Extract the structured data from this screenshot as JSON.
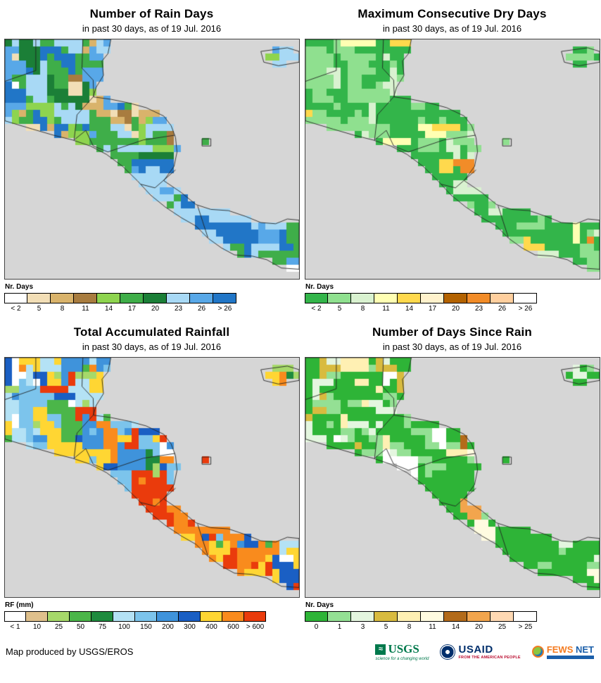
{
  "page": {
    "background": "#ffffff",
    "sea_color": "#d6d6d6"
  },
  "footer": {
    "credit": "Map produced by USGS/EROS",
    "logos": [
      {
        "name": "usgs",
        "text": "USGS",
        "tagline": "science for a changing world"
      },
      {
        "name": "usaid",
        "text": "USAID",
        "tagline": "FROM THE AMERICAN PEOPLE"
      },
      {
        "name": "fews-net",
        "text_primary": "FEWS",
        "text_secondary": " NET"
      }
    ]
  },
  "chart_data": [
    {
      "id": "rain-days",
      "type": "heatmap",
      "title": "Number of Rain Days",
      "subtitle": "in past 30 days, as of 19 Jul. 2016",
      "legend_title": "Nr. Days",
      "classes": [
        {
          "label": "< 2",
          "color": "#ffffff"
        },
        {
          "label": "5",
          "color": "#f2deb6"
        },
        {
          "label": "8",
          "color": "#d9b36b"
        },
        {
          "label": "11",
          "color": "#a87c3f"
        },
        {
          "label": "14",
          "color": "#8ed44f"
        },
        {
          "label": "17",
          "color": "#3fae49"
        },
        {
          "label": "20",
          "color": "#1b7f37"
        },
        {
          "label": "23",
          "color": "#a8d9f5"
        },
        {
          "label": "26",
          "color": "#58a8e8"
        },
        {
          "label": "> 26",
          "color": "#2176c7"
        }
      ],
      "seed": 11,
      "default_weights": [
        3,
        4,
        5,
        3,
        7,
        20,
        6,
        16,
        24,
        12
      ],
      "regions": [
        {
          "x0": 0.2,
          "y0": 0.16,
          "x1": 0.56,
          "y1": 0.42,
          "weights": [
            4,
            10,
            13,
            9,
            7,
            18,
            4,
            10,
            18,
            7
          ]
        },
        {
          "x0": 0.4,
          "y0": 0.5,
          "x1": 1.0,
          "y1": 1.0,
          "weights": [
            1,
            1,
            2,
            1,
            4,
            12,
            4,
            22,
            32,
            21
          ]
        },
        {
          "x0": 0.0,
          "y0": 0.0,
          "x1": 0.4,
          "y1": 0.5,
          "weights": [
            4,
            5,
            6,
            4,
            8,
            22,
            6,
            16,
            20,
            9
          ]
        }
      ]
    },
    {
      "id": "max-consecutive-dry-days",
      "type": "heatmap",
      "title": "Maximum Consecutive Dry Days",
      "subtitle": "in past 30 days, as of 19 Jul. 2016",
      "legend_title": "Nr. Days",
      "classes": [
        {
          "label": "< 2",
          "color": "#33b54a"
        },
        {
          "label": "5",
          "color": "#8fe08f"
        },
        {
          "label": "8",
          "color": "#d9f2d0"
        },
        {
          "label": "11",
          "color": "#ffffb3"
        },
        {
          "label": "14",
          "color": "#ffd94d"
        },
        {
          "label": "17",
          "color": "#fff2cc"
        },
        {
          "label": "20",
          "color": "#b36200"
        },
        {
          "label": "23",
          "color": "#f28c28"
        },
        {
          "label": "26",
          "color": "#ffcf9e"
        },
        {
          "label": "> 26",
          "color": "#ffffff"
        }
      ],
      "seed": 22,
      "default_weights": [
        56,
        26,
        9,
        4,
        2,
        1,
        0.5,
        0.5,
        0.5,
        0.5
      ],
      "regions": [
        {
          "x0": 0.0,
          "y0": 0.0,
          "x1": 0.5,
          "y1": 0.16,
          "weights": [
            26,
            20,
            14,
            16,
            14,
            4,
            2,
            2,
            1,
            1
          ]
        }
      ]
    },
    {
      "id": "total-accumulated-rainfall",
      "type": "heatmap",
      "title": "Total Accumulated Rainfall",
      "subtitle": "in past 30 days, as of 19 Jul. 2016",
      "legend_title": "RF (mm)",
      "classes": [
        {
          "label": "< 1",
          "color": "#ffffff"
        },
        {
          "label": "10",
          "color": "#dfc08c"
        },
        {
          "label": "25",
          "color": "#a6d96a"
        },
        {
          "label": "50",
          "color": "#4bb649"
        },
        {
          "label": "75",
          "color": "#1e8b3e"
        },
        {
          "label": "100",
          "color": "#b4e2f5"
        },
        {
          "label": "150",
          "color": "#7cc4ec"
        },
        {
          "label": "200",
          "color": "#3f93db"
        },
        {
          "label": "300",
          "color": "#1a5fc4"
        },
        {
          "label": "400",
          "color": "#ffd633"
        },
        {
          "label": "600",
          "color": "#f98b1d"
        },
        {
          "label": "> 600",
          "color": "#ea3b0c"
        }
      ],
      "seed": 33,
      "default_weights": [
        2,
        3,
        6,
        8,
        3,
        9,
        11,
        11,
        7,
        15,
        13,
        7
      ],
      "regions": [
        {
          "x0": 0.4,
          "y0": 0.46,
          "x1": 0.64,
          "y1": 0.82,
          "weights": [
            0,
            0,
            1,
            2,
            1,
            2,
            2,
            3,
            2,
            9,
            22,
            41
          ]
        },
        {
          "x0": 0.58,
          "y0": 0.64,
          "x1": 1.0,
          "y1": 1.0,
          "weights": [
            1,
            1,
            3,
            4,
            2,
            4,
            5,
            5,
            3,
            19,
            27,
            13
          ]
        },
        {
          "x0": 0.0,
          "y0": 0.0,
          "x1": 0.48,
          "y1": 0.5,
          "weights": [
            2,
            3,
            6,
            8,
            3,
            13,
            15,
            15,
            11,
            9,
            7,
            5
          ]
        }
      ]
    },
    {
      "id": "days-since-rain",
      "type": "heatmap",
      "title": "Number of Days Since Rain",
      "subtitle": "in past 30 days, as of 19 Jul. 2016",
      "legend_title": "Nr. Days",
      "classes": [
        {
          "label": "0",
          "color": "#2eb437"
        },
        {
          "label": "1",
          "color": "#94e094"
        },
        {
          "label": "3",
          "color": "#e4f6df"
        },
        {
          "label": "5",
          "color": "#d8bb3f"
        },
        {
          "label": "8",
          "color": "#fff0b3"
        },
        {
          "label": "11",
          "color": "#fffbe0"
        },
        {
          "label": "14",
          "color": "#b36b1a"
        },
        {
          "label": "20",
          "color": "#f2a54d"
        },
        {
          "label": "25",
          "color": "#ffd9b3"
        },
        {
          "label": "> 25",
          "color": "#ffffff"
        }
      ],
      "seed": 44,
      "default_weights": [
        74,
        13,
        6,
        2,
        2,
        1,
        0.5,
        0.5,
        0.5,
        0.5
      ],
      "regions": [
        {
          "x0": 0.05,
          "y0": 0.0,
          "x1": 0.5,
          "y1": 0.14,
          "weights": [
            34,
            16,
            10,
            14,
            12,
            6,
            2,
            2,
            2,
            2
          ]
        },
        {
          "x0": 0.0,
          "y0": 0.08,
          "x1": 0.32,
          "y1": 0.5,
          "weights": [
            36,
            18,
            22,
            5,
            6,
            4,
            1,
            1,
            2,
            5
          ]
        }
      ]
    }
  ]
}
